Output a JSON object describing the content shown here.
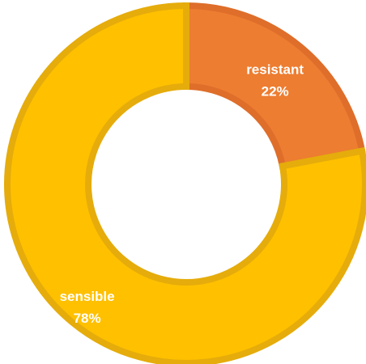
{
  "chart_data": {
    "type": "pie",
    "variant": "donut",
    "title": "",
    "start_angle_deg": 0,
    "direction": "clockwise",
    "slices": [
      {
        "label": "resistant",
        "value": 22,
        "value_label": "22%",
        "fill": "#ED7D31",
        "stroke": "#DE6E2A"
      },
      {
        "label": "sensible",
        "value": 78,
        "value_label": "78%",
        "fill": "#FFC000",
        "stroke": "#E5AC0B"
      }
    ],
    "legend": "none",
    "data_labels": "inside"
  }
}
